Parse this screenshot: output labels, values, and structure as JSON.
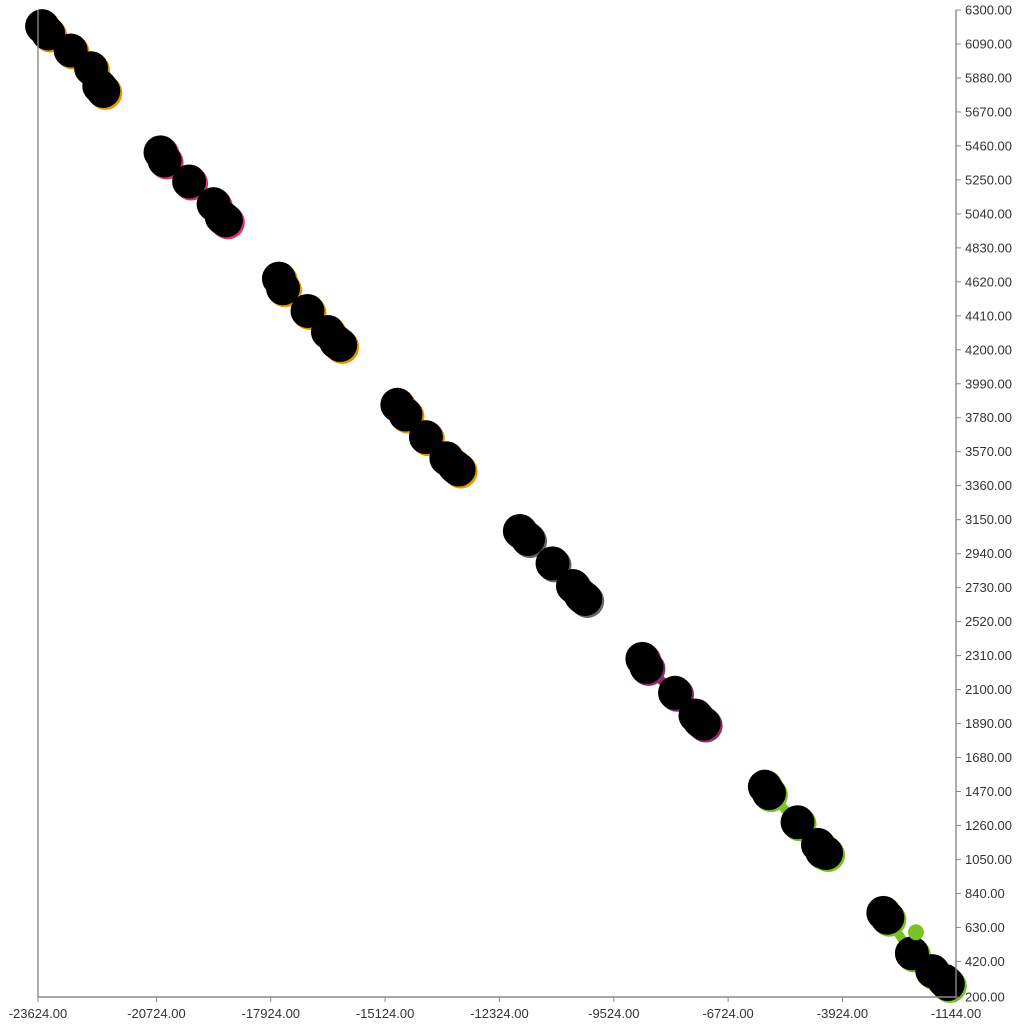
{
  "chart_data": {
    "type": "scatter",
    "title": "",
    "xlabel": "",
    "ylabel": "",
    "xlim": [
      -23624,
      -1144
    ],
    "ylim": [
      200,
      6300
    ],
    "grid": false,
    "legend": "none",
    "y_axis_side": "right",
    "marker_color": "#000000",
    "x_ticks": [
      "-23624.00",
      "-20724.00",
      "-17924.00",
      "-15124.00",
      "-12324.00",
      "-9524.00",
      "-6724.00",
      "-3924.00",
      "-1144.00"
    ],
    "x_tick_values": [
      -23624,
      -20724,
      -17924,
      -15124,
      -12324,
      -9524,
      -6724,
      -3924,
      -1144
    ],
    "y_ticks": [
      "6300.00",
      "6090.00",
      "5880.00",
      "5670.00",
      "5460.00",
      "5250.00",
      "5040.00",
      "4830.00",
      "4620.00",
      "4410.00",
      "4200.00",
      "3990.00",
      "3780.00",
      "3570.00",
      "3360.00",
      "3150.00",
      "2940.00",
      "2730.00",
      "2520.00",
      "2310.00",
      "2100.00",
      "1890.00",
      "1680.00",
      "1470.00",
      "1260.00",
      "1050.00",
      "840.00",
      "630.00",
      "420.00",
      "200.00"
    ],
    "y_tick_values": [
      6300,
      6090,
      5880,
      5670,
      5460,
      5250,
      5040,
      4830,
      4620,
      4410,
      4200,
      3990,
      3780,
      3570,
      3360,
      3150,
      2940,
      2730,
      2520,
      2310,
      2100,
      1890,
      1680,
      1470,
      1260,
      1050,
      840,
      630,
      420,
      200
    ],
    "series": [
      {
        "color": "#e69500",
        "points": [
          [
            -23524,
            6200
          ],
          [
            -23374,
            6155
          ],
          [
            -22824,
            6050
          ],
          [
            -22324,
            5940
          ],
          [
            -22124,
            5830
          ],
          [
            -22024,
            5800
          ]
        ]
      },
      {
        "color": "#d6336c",
        "points": [
          [
            -20624,
            5420
          ],
          [
            -20524,
            5370
          ],
          [
            -19924,
            5240
          ],
          [
            -19324,
            5100
          ],
          [
            -19124,
            5020
          ],
          [
            -19024,
            5000
          ]
        ]
      },
      {
        "color": "#e69500",
        "points": [
          [
            -17724,
            4640
          ],
          [
            -17624,
            4580
          ],
          [
            -17024,
            4440
          ],
          [
            -16524,
            4310
          ],
          [
            -16324,
            4250
          ],
          [
            -16224,
            4230
          ]
        ]
      },
      {
        "color": "#e69500",
        "points": [
          [
            -14824,
            3860
          ],
          [
            -14624,
            3800
          ],
          [
            -14124,
            3660
          ],
          [
            -13624,
            3530
          ],
          [
            -13424,
            3480
          ],
          [
            -13324,
            3460
          ]
        ]
      },
      {
        "color": "#666666",
        "points": [
          [
            -11824,
            3080
          ],
          [
            -11624,
            3030
          ],
          [
            -11024,
            2880
          ],
          [
            -10524,
            2740
          ],
          [
            -10324,
            2680
          ],
          [
            -10224,
            2660
          ]
        ]
      },
      {
        "color": "#8b2a6b",
        "points": [
          [
            -8824,
            2290
          ],
          [
            -8724,
            2240
          ],
          [
            -8024,
            2080
          ],
          [
            -7524,
            1940
          ],
          [
            -7424,
            1910
          ],
          [
            -7324,
            1890
          ]
        ]
      },
      {
        "color": "#7cc225",
        "points": [
          [
            -5824,
            1500
          ],
          [
            -5724,
            1460
          ],
          [
            -5024,
            1280
          ],
          [
            -4524,
            1140
          ],
          [
            -4424,
            1100
          ],
          [
            -4324,
            1090
          ]
        ]
      },
      {
        "color": "#7cc225",
        "points": [
          [
            -2924,
            720
          ],
          [
            -2824,
            690
          ],
          [
            -2224,
            470
          ],
          [
            -1724,
            360
          ],
          [
            -1424,
            300
          ],
          [
            -1344,
            280
          ]
        ]
      }
    ],
    "connector_points": [
      [
        -2124,
        600
      ]
    ]
  }
}
